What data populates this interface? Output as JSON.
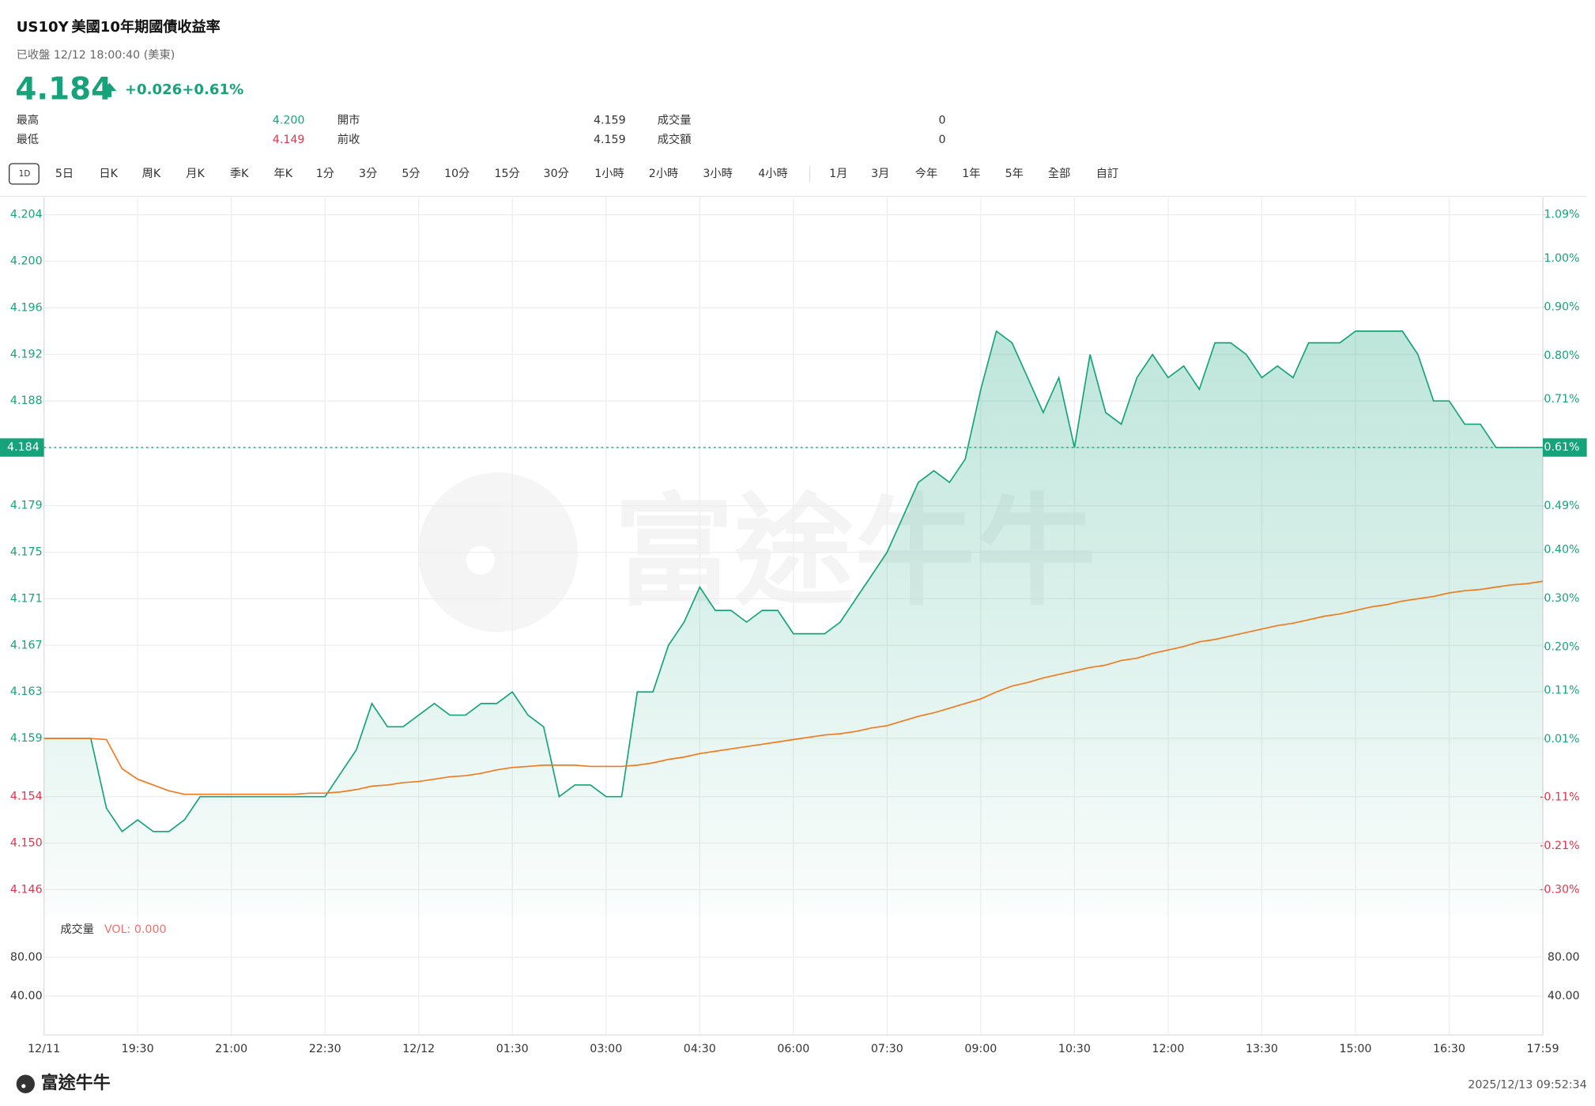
{
  "header": {
    "symbol": "US10Y",
    "name": "美國10年期國債收益率",
    "status": "已收盤 12/12 18:00:40 (美東)",
    "price": "4.184",
    "change": "+0.026",
    "change_pct": "+0.61%"
  },
  "stats": [
    {
      "label": "最高",
      "value": "4.200"
    },
    {
      "label": "開市",
      "value": "4.159"
    },
    {
      "label": "成交量",
      "value": "0"
    },
    {
      "label": "最低",
      "value": "4.149"
    },
    {
      "label": "前收",
      "value": "4.159"
    },
    {
      "label": "成交額",
      "value": "0"
    }
  ],
  "tabs": [
    "1D",
    "5日",
    "日K",
    "周K",
    "月K",
    "季K",
    "年K",
    "1分",
    "3分",
    "5分",
    "10分",
    "15分",
    "30分",
    "1小時",
    "2小時",
    "3小時",
    "4小時",
    "1月",
    "3月",
    "今年",
    "1年",
    "5年",
    "全部",
    "自訂"
  ],
  "chart_data": {
    "type": "line",
    "categories": [
      "12/11",
      null,
      null,
      null,
      null,
      null,
      "19:30",
      null,
      null,
      null,
      null,
      null,
      "21:00",
      null,
      null,
      null,
      null,
      null,
      "22:30",
      null,
      null,
      null,
      null,
      null,
      "12/12",
      null,
      null,
      null,
      null,
      null,
      "01:30",
      null,
      null,
      null,
      null,
      null,
      "03:00",
      null,
      null,
      null,
      null,
      null,
      "04:30",
      null,
      null,
      null,
      null,
      null,
      "06:00",
      null,
      null,
      null,
      null,
      null,
      "07:30",
      null,
      null,
      null,
      null,
      null,
      "09:00",
      null,
      null,
      null,
      null,
      null,
      "10:30",
      null,
      null,
      null,
      null,
      null,
      "12:00",
      null,
      null,
      null,
      null,
      null,
      "13:30",
      null,
      null,
      null,
      null,
      null,
      "15:00",
      null,
      null,
      null,
      null,
      null,
      "16:30",
      null,
      null,
      null,
      null,
      null,
      "17:59"
    ],
    "series": [
      {
        "color": "#16a37b",
        "values": [
          4.159,
          4.159,
          4.159,
          4.159,
          4.153,
          4.151,
          4.152,
          4.151,
          4.151,
          4.152,
          4.154,
          4.154,
          4.154,
          4.154,
          4.154,
          4.154,
          4.154,
          4.154,
          4.154,
          4.156,
          4.158,
          4.162,
          4.16,
          4.16,
          4.161,
          4.162,
          4.161,
          4.161,
          4.162,
          4.162,
          4.163,
          4.161,
          4.16,
          4.154,
          4.155,
          4.155,
          4.154,
          4.154,
          4.163,
          4.163,
          4.167,
          4.169,
          4.172,
          4.17,
          4.17,
          4.169,
          4.17,
          4.17,
          4.168,
          4.168,
          4.168,
          4.169,
          4.171,
          4.173,
          4.175,
          4.178,
          4.181,
          4.182,
          4.181,
          4.183,
          4.189,
          4.194,
          4.193,
          4.19,
          4.187,
          4.19,
          4.184,
          4.192,
          4.187,
          4.186,
          4.19,
          4.192,
          4.19,
          4.191,
          4.189,
          4.193,
          4.193,
          4.192,
          4.19,
          4.191,
          4.19,
          4.193,
          4.193,
          4.193,
          4.194,
          4.194,
          4.194,
          4.194,
          4.192,
          4.188,
          4.188,
          4.186,
          4.186,
          4.184,
          4.184,
          4.184,
          4.184
        ]
      },
      {
        "color": "#f07b1f",
        "values": [
          4.159,
          4.159,
          4.159,
          4.159,
          4.1589,
          4.1564,
          4.1555,
          4.155,
          4.1545,
          4.1542,
          4.1542,
          4.1542,
          4.1542,
          4.1542,
          4.1542,
          4.1542,
          4.1542,
          4.1543,
          4.1543,
          4.1544,
          4.1546,
          4.1549,
          4.155,
          4.1552,
          4.1553,
          4.1555,
          4.1557,
          4.1558,
          4.156,
          4.1563,
          4.1565,
          4.1566,
          4.1567,
          4.1567,
          4.1567,
          4.1566,
          4.1566,
          4.1566,
          4.1567,
          4.1569,
          4.1572,
          4.1574,
          4.1577,
          4.1579,
          4.1581,
          4.1583,
          4.1585,
          4.1587,
          4.1589,
          4.1591,
          4.1593,
          4.1594,
          4.1596,
          4.1599,
          4.1601,
          4.1605,
          4.1609,
          4.1612,
          4.1616,
          4.162,
          4.1624,
          4.163,
          4.1635,
          4.1638,
          4.1642,
          4.1645,
          4.1648,
          4.1651,
          4.1653,
          4.1657,
          4.1659,
          4.1663,
          4.1666,
          4.1669,
          4.1673,
          4.1675,
          4.1678,
          4.1681,
          4.1684,
          4.1687,
          4.1689,
          4.1692,
          4.1695,
          4.1697,
          4.17,
          4.1703,
          4.1705,
          4.1708,
          4.171,
          4.1712,
          4.1715,
          4.1717,
          4.1718,
          4.172,
          4.1722,
          4.1723,
          4.1725
        ]
      }
    ],
    "ylim": [
      4.146,
      4.204
    ],
    "yticks": [
      4.204,
      {
        "value": 4.2,
        "label": "4.200"
      },
      4.196,
      4.192,
      4.188,
      4.184,
      4.179,
      4.175,
      4.171,
      4.167,
      4.163,
      4.159,
      4.154,
      {
        "value": 4.15,
        "label": "4.150"
      },
      4.146
    ],
    "y2lim": [
      -0.3,
      1.09
    ],
    "y2ticks": [
      {
        "value": 1.09,
        "label": "1.09%"
      },
      {
        "value": 1.0,
        "label": "1.00%"
      },
      {
        "value": 0.9,
        "label": "0.90%"
      },
      {
        "value": 0.8,
        "label": "0.80%"
      },
      {
        "value": 0.71,
        "label": "0.71%"
      },
      {
        "value": 0.61,
        "label": "0.61%"
      },
      {
        "value": 0.49,
        "label": "0.49%"
      },
      {
        "value": 0.4,
        "label": "0.40%"
      },
      {
        "value": 0.3,
        "label": "0.30%"
      },
      {
        "value": 0.2,
        "label": "0.20%"
      },
      {
        "value": 0.11,
        "label": "0.11%"
      },
      {
        "value": 0.01,
        "label": "0.01%"
      },
      {
        "value": -0.11,
        "label": "-0.11%"
      },
      {
        "value": -0.21,
        "label": "-0.21%"
      },
      {
        "value": -0.3,
        "label": "-0.30%"
      }
    ],
    "grid": true,
    "baseline": 4.159,
    "up_color": "#16a37b",
    "down_color": "#e5334b",
    "current": {
      "value": 4.184,
      "pct": {
        "value": 0.61,
        "label": "0.61%"
      }
    }
  },
  "volume": {
    "title": "成交量",
    "legend": "VOL: 0.000",
    "ylim": [
      0,
      80
    ],
    "yticks": [
      {
        "value": 80,
        "label": "80.00"
      },
      {
        "value": 40,
        "label": "40.00"
      }
    ]
  },
  "watermark": "富途牛牛",
  "footer": {
    "brand": "富途牛牛",
    "timestamp": "2025/12/13 09:52:34"
  }
}
